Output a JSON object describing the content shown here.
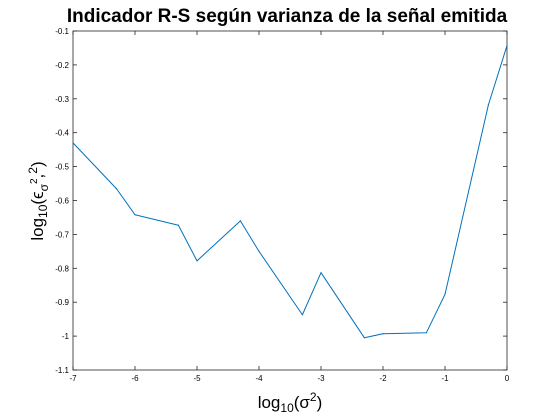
{
  "chart_data": {
    "type": "line",
    "title": "Indicador R-S según varianza de la señal emitida",
    "xlabel": {
      "base": "log",
      "base_sub": "10",
      "open": "(",
      "sym": "σ",
      "sup": "2",
      "close": ")"
    },
    "ylabel": {
      "base": "log",
      "base_sub": "10",
      "open": "(",
      "sym": "ϵ",
      "sub": "σ",
      "sub2": "2",
      "sep": ",",
      "close": ")"
    },
    "xlim": [
      -7,
      0
    ],
    "ylim": [
      -1.1,
      -0.1
    ],
    "xticks": [
      -7,
      -6,
      -5,
      -4,
      -3,
      -2,
      -1,
      0
    ],
    "xtick_labels": [
      "-7",
      "-6",
      "-5",
      "-4",
      "-3",
      "-2",
      "-1",
      "0"
    ],
    "yticks": [
      -0.1,
      -0.2,
      -0.3,
      -0.4,
      -0.5,
      -0.6,
      -0.7,
      -0.8,
      -0.9,
      -1,
      -1.1
    ],
    "ytick_labels": [
      "-0.1",
      "-0.2",
      "-0.3",
      "-0.4",
      "-0.5",
      "-0.6",
      "-0.7",
      "-0.8",
      "-0.9",
      "-1",
      "-1.1"
    ],
    "grid": false,
    "legend": "none",
    "line_color": "#0072BD",
    "series": [
      {
        "x": [
          -7,
          -6.3,
          -6,
          -5.3,
          -5,
          -4.3,
          -4,
          -3.3,
          -3,
          -2.3,
          -2,
          -1.3,
          -1,
          -0.3,
          0
        ],
        "y": [
          -0.43,
          -0.565,
          -0.642,
          -0.673,
          -0.778,
          -0.66,
          -0.75,
          -0.937,
          -0.813,
          -1.005,
          -0.993,
          -0.99,
          -0.877,
          -0.318,
          -0.143
        ]
      }
    ]
  }
}
